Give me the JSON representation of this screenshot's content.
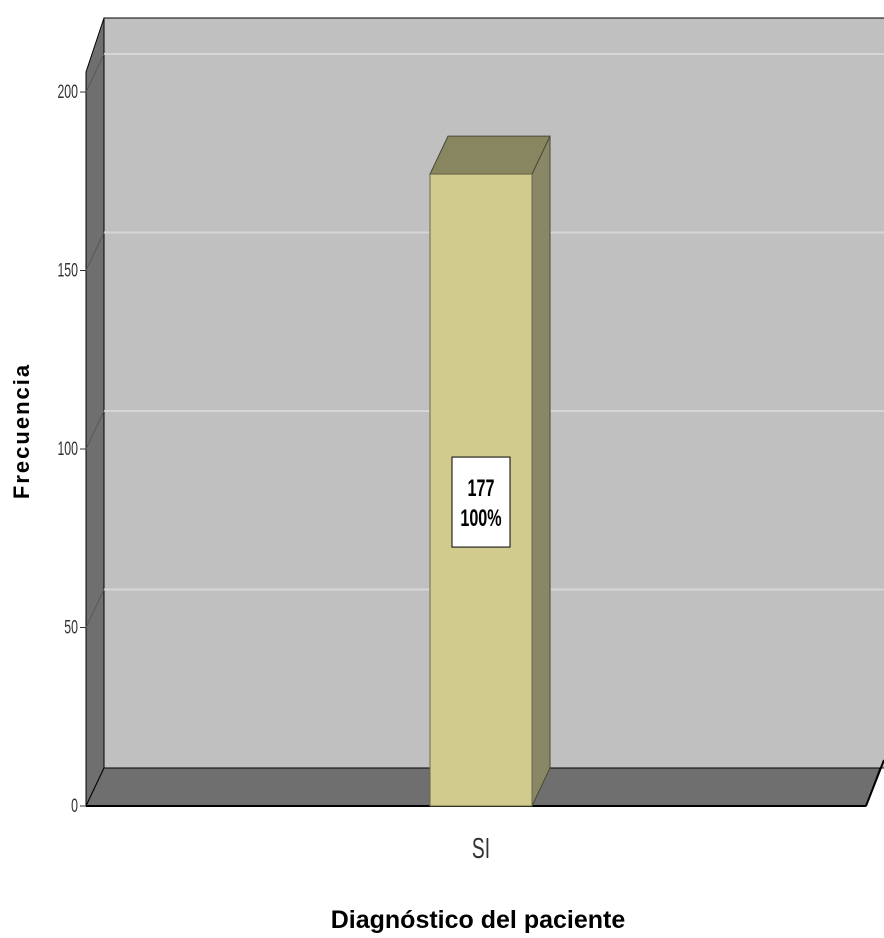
{
  "chart_data": {
    "type": "bar",
    "categories": [
      "SI"
    ],
    "values": [
      177
    ],
    "data_labels": [
      {
        "count": "177",
        "percent": "100%"
      }
    ],
    "xlabel": "Diagnóstico del paciente",
    "ylabel": "Frecuencia",
    "ylim": [
      0,
      200
    ],
    "yticks": [
      "0",
      "50",
      "100",
      "150",
      "200"
    ],
    "grid": true,
    "style": "3d",
    "colors": {
      "bar_front": "#d2cb8e",
      "bar_top": "#888660",
      "bar_side": "#8a8766",
      "plot_back": "#c0c0c0",
      "wall": "#6f6f6f",
      "floor": "#6f6f6f",
      "gridline": "#d6d6d6"
    }
  }
}
